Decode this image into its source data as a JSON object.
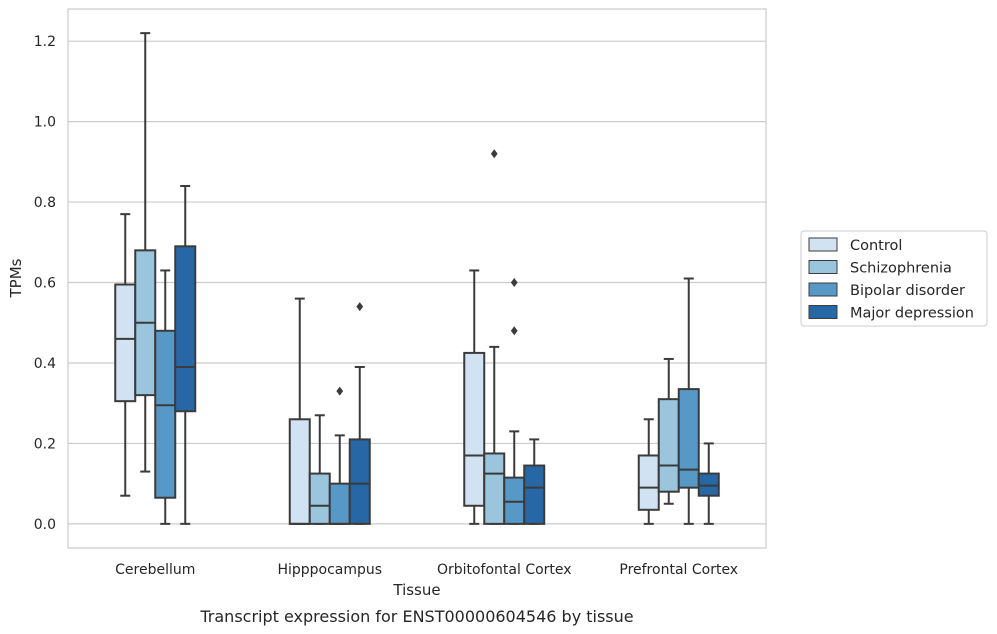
{
  "chart_data": {
    "type": "box",
    "title": "",
    "caption": "Transcript expression for ENST00000604546 by tissue",
    "xlabel": "Tissue",
    "ylabel": "TPMs",
    "ylim": [
      -0.06,
      1.28
    ],
    "yticks": [
      0.0,
      0.2,
      0.4,
      0.6,
      0.8,
      1.0,
      1.2
    ],
    "ytick_labels": [
      "0.0",
      "0.2",
      "0.4",
      "0.6",
      "0.8",
      "1.0",
      "1.2"
    ],
    "grid": "horizontal",
    "legend_position": "right",
    "categories": [
      "Cerebellum",
      "Hipppocampus",
      "Orbitofontal Cortex",
      "Prefrontal Cortex"
    ],
    "series": [
      {
        "name": "Control",
        "color": "#d1e2f2",
        "boxes": [
          {
            "whislo": 0.07,
            "q1": 0.305,
            "med": 0.46,
            "q3": 0.595,
            "whishi": 0.77,
            "fliers": []
          },
          {
            "whislo": 0.0,
            "q1": 0.0,
            "med": 0.0,
            "q3": 0.26,
            "whishi": 0.56,
            "fliers": []
          },
          {
            "whislo": 0.0,
            "q1": 0.045,
            "med": 0.17,
            "q3": 0.425,
            "whishi": 0.63,
            "fliers": []
          },
          {
            "whislo": 0.0,
            "q1": 0.035,
            "med": 0.09,
            "q3": 0.17,
            "whishi": 0.26,
            "fliers": []
          }
        ]
      },
      {
        "name": "Schizophrenia",
        "color": "#9ac5dd",
        "boxes": [
          {
            "whislo": 0.13,
            "q1": 0.32,
            "med": 0.5,
            "q3": 0.68,
            "whishi": 1.22,
            "fliers": []
          },
          {
            "whislo": 0.0,
            "q1": 0.0,
            "med": 0.045,
            "q3": 0.125,
            "whishi": 0.27,
            "fliers": []
          },
          {
            "whislo": 0.0,
            "q1": 0.0,
            "med": 0.125,
            "q3": 0.175,
            "whishi": 0.44,
            "fliers": [
              0.92
            ]
          },
          {
            "whislo": 0.05,
            "q1": 0.08,
            "med": 0.145,
            "q3": 0.31,
            "whishi": 0.41,
            "fliers": []
          }
        ]
      },
      {
        "name": "Bipolar disorder",
        "color": "#5898c7",
        "boxes": [
          {
            "whislo": 0.0,
            "q1": 0.065,
            "med": 0.295,
            "q3": 0.48,
            "whishi": 0.63,
            "fliers": []
          },
          {
            "whislo": 0.0,
            "q1": 0.0,
            "med": 0.0,
            "q3": 0.1,
            "whishi": 0.22,
            "fliers": [
              0.33
            ]
          },
          {
            "whislo": 0.0,
            "q1": 0.0,
            "med": 0.055,
            "q3": 0.115,
            "whishi": 0.23,
            "fliers": [
              0.48,
              0.6
            ]
          },
          {
            "whislo": 0.0,
            "q1": 0.09,
            "med": 0.135,
            "q3": 0.335,
            "whishi": 0.61,
            "fliers": []
          }
        ]
      },
      {
        "name": "Major depression",
        "color": "#2767a6",
        "boxes": [
          {
            "whislo": 0.0,
            "q1": 0.28,
            "med": 0.39,
            "q3": 0.69,
            "whishi": 0.84,
            "fliers": []
          },
          {
            "whislo": 0.0,
            "q1": 0.0,
            "med": 0.1,
            "q3": 0.21,
            "whishi": 0.39,
            "fliers": [
              0.54
            ]
          },
          {
            "whislo": 0.0,
            "q1": 0.0,
            "med": 0.09,
            "q3": 0.145,
            "whishi": 0.21,
            "fliers": []
          },
          {
            "whislo": 0.0,
            "q1": 0.07,
            "med": 0.095,
            "q3": 0.125,
            "whishi": 0.2,
            "fliers": []
          }
        ]
      }
    ]
  }
}
